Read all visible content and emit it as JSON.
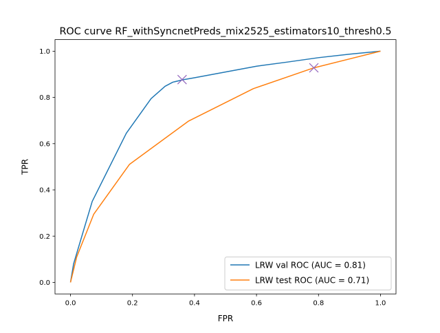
{
  "chart_data": {
    "type": "line",
    "title": "ROC curve RF_withSyncnetPreds_mix2525_estimators10_thresh0.5",
    "xlabel": "FPR",
    "ylabel": "TPR",
    "xlim": [
      -0.05,
      1.05
    ],
    "ylim": [
      -0.05,
      1.05
    ],
    "xticks": [
      0.0,
      0.2,
      0.4,
      0.6,
      0.8,
      1.0
    ],
    "yticks": [
      0.0,
      0.2,
      0.4,
      0.6,
      0.8,
      1.0
    ],
    "xtick_labels": [
      "0.0",
      "0.2",
      "0.4",
      "0.6",
      "0.8",
      "1.0"
    ],
    "ytick_labels": [
      "0.0",
      "0.2",
      "0.4",
      "0.6",
      "0.8",
      "1.0"
    ],
    "grid": false,
    "legend_position": "lower-right",
    "series": [
      {
        "name": "LRW val ROC (AUC = 0.81)",
        "color": "#1f77b4",
        "x": [
          0.0,
          0.01,
          0.07,
          0.18,
          0.26,
          0.305,
          0.33,
          0.365,
          0.4,
          0.5,
          0.6,
          0.7,
          0.8,
          0.9,
          1.0
        ],
        "y": [
          0.0,
          0.08,
          0.35,
          0.645,
          0.795,
          0.848,
          0.866,
          0.877,
          0.885,
          0.91,
          0.935,
          0.953,
          0.972,
          0.987,
          1.0
        ],
        "marker": {
          "x": 0.36,
          "y": 0.877,
          "symbol": "x",
          "color": "#9467bd"
        }
      },
      {
        "name": "LRW test ROC (AUC = 0.71)",
        "color": "#ff7f0e",
        "x": [
          0.0,
          0.02,
          0.075,
          0.19,
          0.38,
          0.59,
          0.785,
          1.0
        ],
        "y": [
          0.0,
          0.11,
          0.295,
          0.51,
          0.697,
          0.838,
          0.928,
          1.0
        ],
        "marker": {
          "x": 0.785,
          "y": 0.928,
          "symbol": "x",
          "color": "#9467bd"
        }
      }
    ]
  }
}
